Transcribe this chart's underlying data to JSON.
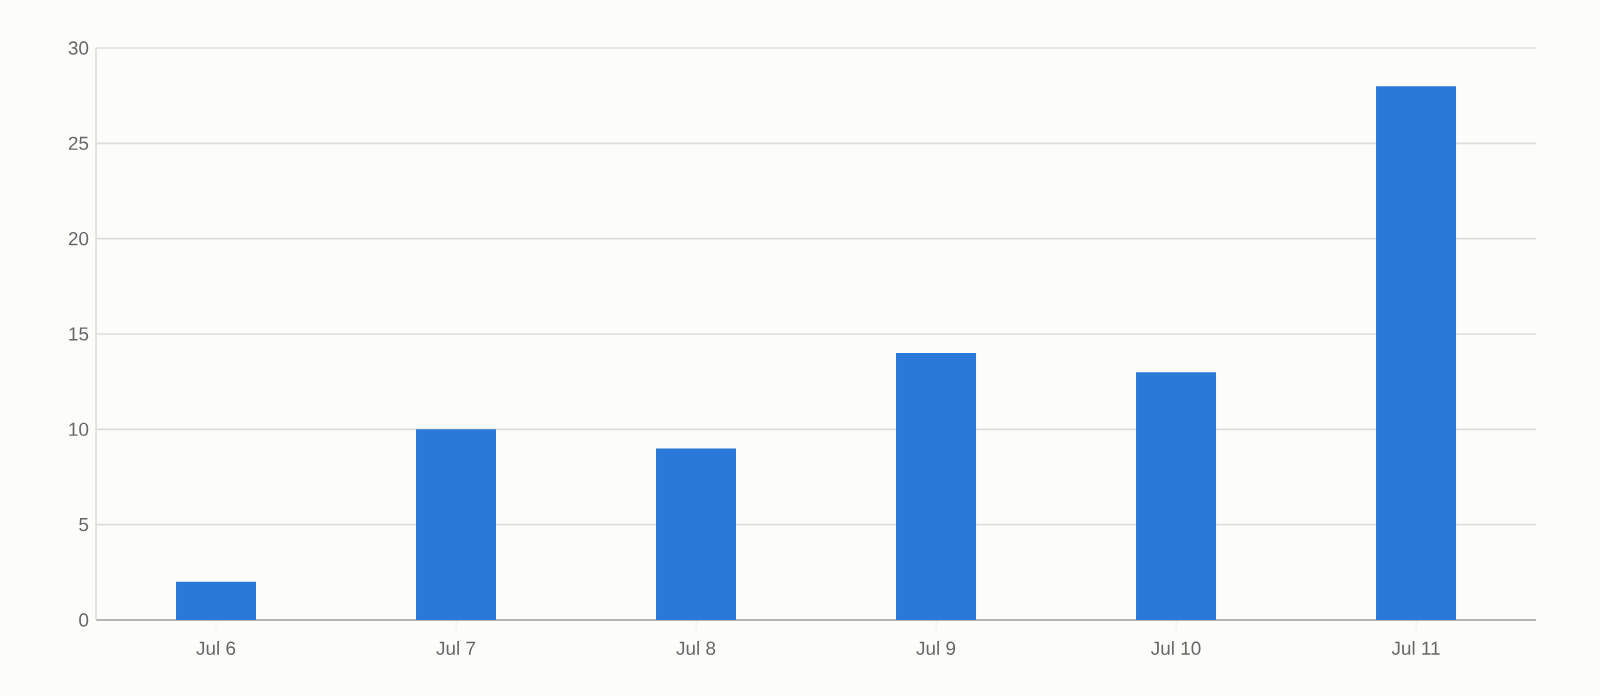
{
  "chart_data": {
    "type": "bar",
    "categories": [
      "Jul 6",
      "Jul 7",
      "Jul 8",
      "Jul 9",
      "Jul 10",
      "Jul 11"
    ],
    "values": [
      2,
      10,
      9,
      14,
      13,
      28
    ],
    "color": "#2a78d8",
    "ylim": [
      0,
      30
    ],
    "yticks": [
      0,
      5,
      10,
      15,
      20,
      25,
      30
    ],
    "grid": "y"
  }
}
